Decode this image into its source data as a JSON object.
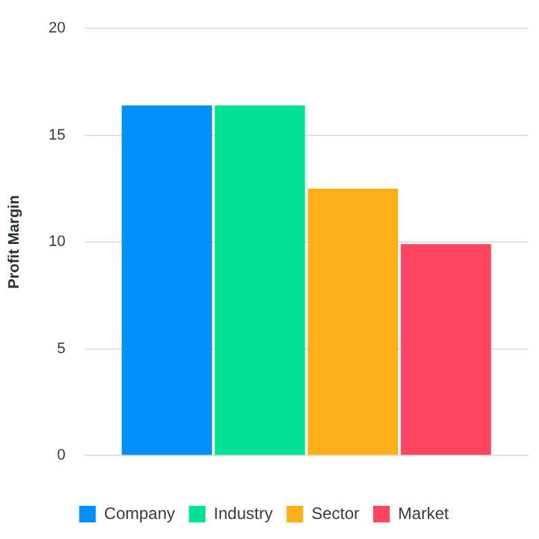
{
  "chart_data": {
    "type": "bar",
    "ylabel": "Profit Margin",
    "categories": [
      null
    ],
    "series": [
      {
        "name": "Company",
        "color": "#008ffb",
        "values": [
          16.4
        ]
      },
      {
        "name": "Industry",
        "color": "#00e396",
        "values": [
          16.4
        ]
      },
      {
        "name": "Sector",
        "color": "#feb019",
        "values": [
          12.5
        ]
      },
      {
        "name": "Market",
        "color": "#ff4560",
        "values": [
          9.9
        ]
      }
    ],
    "ylim": [
      0,
      20
    ],
    "yticks": [
      0,
      5,
      10,
      15,
      20
    ],
    "grid": "y",
    "legend": "bottom"
  }
}
